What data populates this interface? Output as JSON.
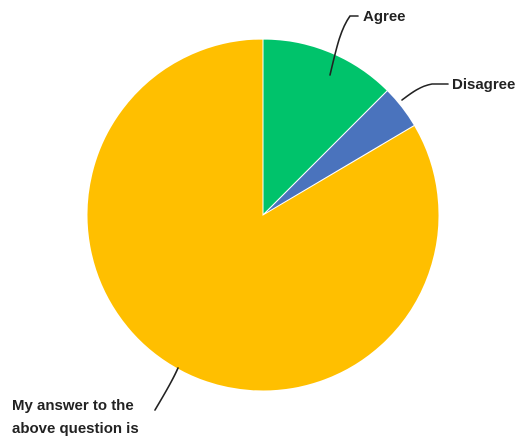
{
  "chart_data": {
    "type": "pie",
    "title": "",
    "slices": [
      {
        "label": "Agree",
        "value": 12.5,
        "color": "#00c36b"
      },
      {
        "label": "Disagree",
        "value": 4,
        "color": "#4a73bd"
      },
      {
        "label": "My answer to the above question is",
        "label_lines": [
          "My answer to the",
          "above question is"
        ],
        "value": 83.5,
        "color": "#ffbf00"
      }
    ],
    "legend": "none"
  }
}
